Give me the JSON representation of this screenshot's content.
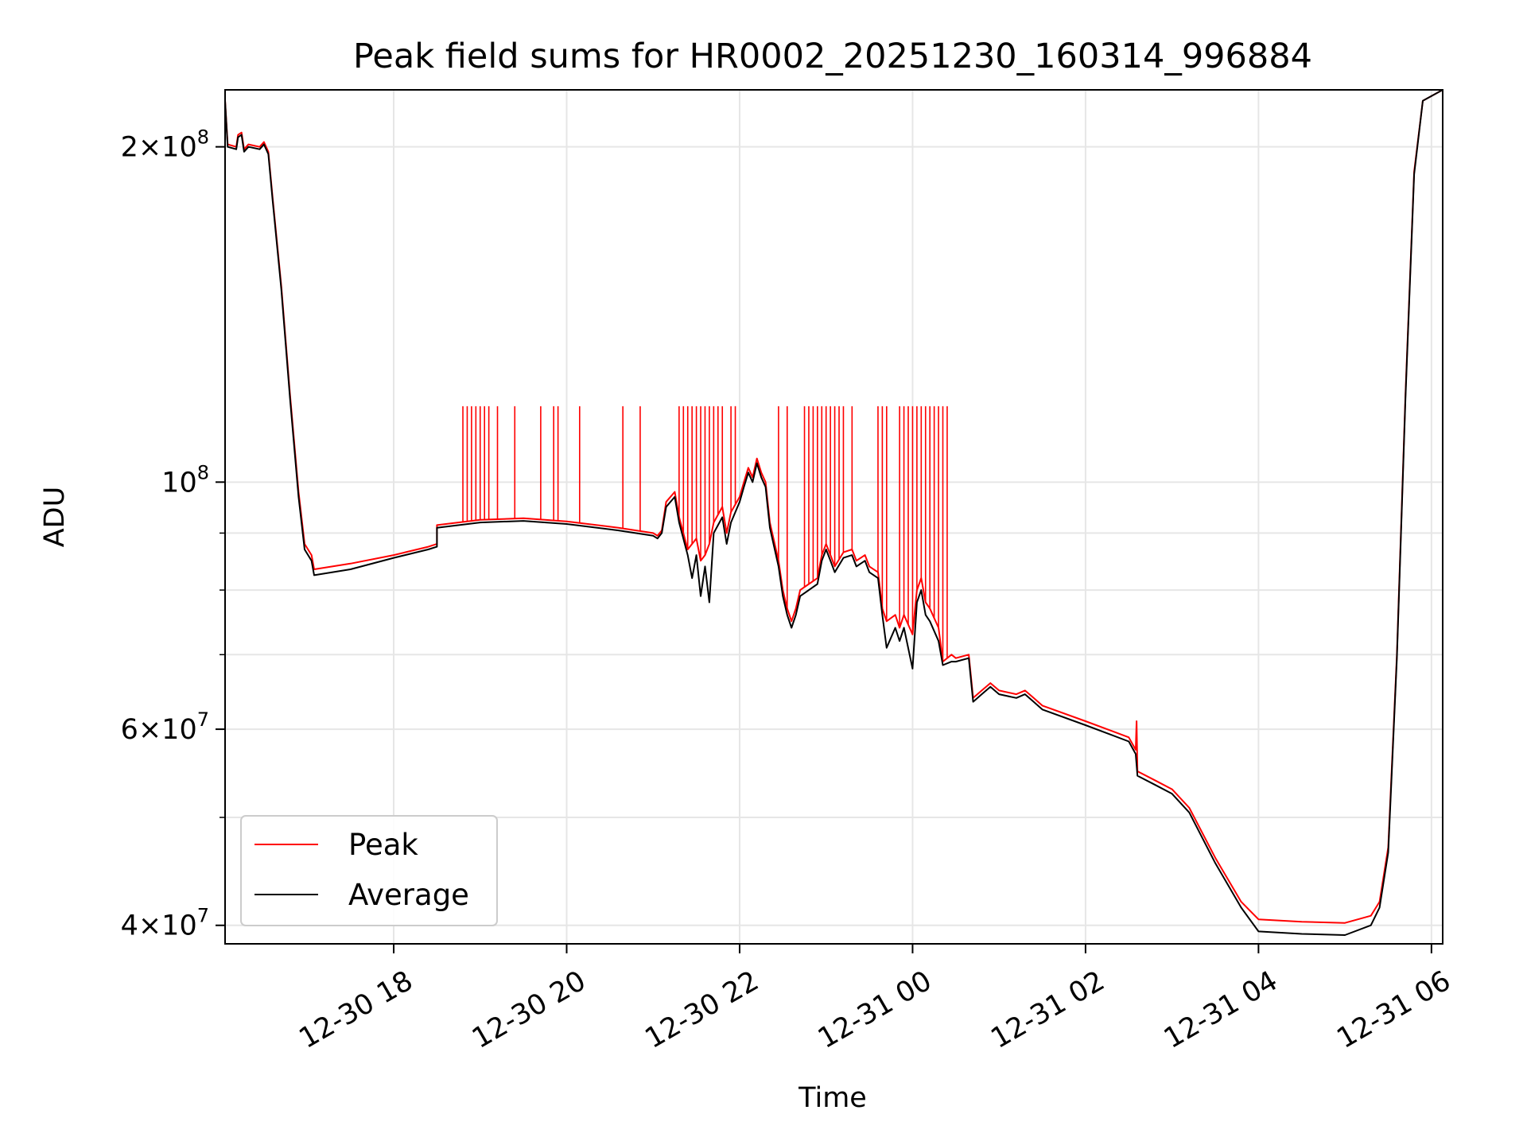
{
  "chart_data": {
    "type": "line",
    "title": "Peak field sums for HR0002_20251230_160314_996884",
    "xlabel": "Time",
    "ylabel": "ADU",
    "yscale": "log",
    "ylim": [
      38500000,
      225000000
    ],
    "xlim_hours_from_12_30_00": [
      16.05,
      30.13
    ],
    "grid": true,
    "legend_position": "lower-left",
    "x_ticks": [
      {
        "hour": 18,
        "label": "12-30 18"
      },
      {
        "hour": 20,
        "label": "12-30 20"
      },
      {
        "hour": 22,
        "label": "12-30 22"
      },
      {
        "hour": 24,
        "label": "12-31 00"
      },
      {
        "hour": 26,
        "label": "12-31 02"
      },
      {
        "hour": 28,
        "label": "12-31 04"
      },
      {
        "hour": 30,
        "label": "12-31 06"
      }
    ],
    "y_ticks": [
      {
        "value": 40000000,
        "mant": "4",
        "exp": "7"
      },
      {
        "value": 60000000,
        "mant": "6",
        "exp": "7"
      },
      {
        "value": 100000000,
        "mant": "",
        "exp": "8"
      },
      {
        "value": 200000000,
        "mant": "2",
        "exp": "8"
      }
    ],
    "y_minor": [
      50000000,
      70000000,
      80000000,
      90000000
    ],
    "series": [
      {
        "name": "Peak",
        "color": "#ff0000",
        "points": [
          [
            16.05,
            220000000
          ],
          [
            16.08,
            201000000
          ],
          [
            16.18,
            200000000
          ],
          [
            16.2,
            205000000
          ],
          [
            16.24,
            206000000
          ],
          [
            16.27,
            199000000
          ],
          [
            16.32,
            201000000
          ],
          [
            16.45,
            200000000
          ],
          [
            16.5,
            202000000
          ],
          [
            16.55,
            198000000
          ],
          [
            16.6,
            180000000
          ],
          [
            16.7,
            150000000
          ],
          [
            16.8,
            120000000
          ],
          [
            16.9,
            98000000
          ],
          [
            16.97,
            88000000
          ],
          [
            17.05,
            86000000
          ],
          [
            17.08,
            83500000
          ],
          [
            17.5,
            84500000
          ],
          [
            18.0,
            86000000
          ],
          [
            18.4,
            87500000
          ],
          [
            18.5,
            88000000
          ],
          [
            18.5,
            91500000
          ],
          [
            19.0,
            92500000
          ],
          [
            19.5,
            92800000
          ],
          [
            20.0,
            92200000
          ],
          [
            20.6,
            91000000
          ],
          [
            21.0,
            90000000
          ],
          [
            21.05,
            89500000
          ],
          [
            21.1,
            90500000
          ],
          [
            21.15,
            96000000
          ],
          [
            21.25,
            98000000
          ],
          [
            21.3,
            93000000
          ],
          [
            21.4,
            87000000
          ],
          [
            21.5,
            89000000
          ],
          [
            21.55,
            85000000
          ],
          [
            21.6,
            86000000
          ],
          [
            21.65,
            88000000
          ],
          [
            21.7,
            92000000
          ],
          [
            21.8,
            95000000
          ],
          [
            21.85,
            90000000
          ],
          [
            21.9,
            94000000
          ],
          [
            22.0,
            97000000
          ],
          [
            22.05,
            100000000
          ],
          [
            22.1,
            103000000
          ],
          [
            22.15,
            101000000
          ],
          [
            22.2,
            105000000
          ],
          [
            22.25,
            102000000
          ],
          [
            22.3,
            100000000
          ],
          [
            22.35,
            92000000
          ],
          [
            22.45,
            85000000
          ],
          [
            22.5,
            80000000
          ],
          [
            22.55,
            77000000
          ],
          [
            22.6,
            75000000
          ],
          [
            22.65,
            77000000
          ],
          [
            22.7,
            80000000
          ],
          [
            22.8,
            81000000
          ],
          [
            22.9,
            82000000
          ],
          [
            22.95,
            86000000
          ],
          [
            23.0,
            88000000
          ],
          [
            23.05,
            86000000
          ],
          [
            23.1,
            84000000
          ],
          [
            23.2,
            86500000
          ],
          [
            23.3,
            87000000
          ],
          [
            23.35,
            85000000
          ],
          [
            23.45,
            86000000
          ],
          [
            23.5,
            84000000
          ],
          [
            23.6,
            83000000
          ],
          [
            23.65,
            77000000
          ],
          [
            23.7,
            75000000
          ],
          [
            23.8,
            76000000
          ],
          [
            23.85,
            74000000
          ],
          [
            23.9,
            76000000
          ],
          [
            24.0,
            73000000
          ],
          [
            24.05,
            80000000
          ],
          [
            24.1,
            82000000
          ],
          [
            24.15,
            78000000
          ],
          [
            24.2,
            77000000
          ],
          [
            24.3,
            74000000
          ],
          [
            24.35,
            69000000
          ],
          [
            24.45,
            70000000
          ],
          [
            24.5,
            69500000
          ],
          [
            24.65,
            70000000
          ],
          [
            24.7,
            64000000
          ],
          [
            24.8,
            65000000
          ],
          [
            24.9,
            66000000
          ],
          [
            25.0,
            65000000
          ],
          [
            25.2,
            64500000
          ],
          [
            25.3,
            65000000
          ],
          [
            25.4,
            64000000
          ],
          [
            25.5,
            63000000
          ],
          [
            26.0,
            61000000
          ],
          [
            26.5,
            59000000
          ],
          [
            26.58,
            57500000
          ],
          [
            26.59,
            61000000
          ],
          [
            26.6,
            55000000
          ],
          [
            26.8,
            54000000
          ],
          [
            27.0,
            53000000
          ],
          [
            27.2,
            51000000
          ],
          [
            27.5,
            46000000
          ],
          [
            27.8,
            42000000
          ],
          [
            28.0,
            40500000
          ],
          [
            28.5,
            40300000
          ],
          [
            29.0,
            40200000
          ],
          [
            29.3,
            40800000
          ],
          [
            29.4,
            42000000
          ],
          [
            29.5,
            47000000
          ],
          [
            29.6,
            70000000
          ],
          [
            29.7,
            120000000
          ],
          [
            29.8,
            190000000
          ],
          [
            29.9,
            220000000
          ],
          [
            30.13,
            225000000
          ]
        ],
        "spikes_to": 117000000,
        "spike_times": [
          18.8,
          18.85,
          18.9,
          18.95,
          19.0,
          19.05,
          19.1,
          19.2,
          19.4,
          19.7,
          19.85,
          19.9,
          20.15,
          20.65,
          20.85,
          21.3,
          21.35,
          21.4,
          21.45,
          21.5,
          21.55,
          21.6,
          21.65,
          21.7,
          21.75,
          21.8,
          21.9,
          21.95,
          22.45,
          22.55,
          22.75,
          22.8,
          22.85,
          22.9,
          22.95,
          23.0,
          23.05,
          23.1,
          23.15,
          23.2,
          23.3,
          23.6,
          23.65,
          23.7,
          23.85,
          23.9,
          23.95,
          24.0,
          24.05,
          24.1,
          24.15,
          24.2,
          24.25,
          24.3,
          24.35,
          24.4
        ]
      },
      {
        "name": "Average",
        "color": "#000000",
        "points": [
          [
            16.05,
            220000000
          ],
          [
            16.08,
            200000000
          ],
          [
            16.18,
            199000000
          ],
          [
            16.2,
            204000000
          ],
          [
            16.24,
            205000000
          ],
          [
            16.27,
            198000000
          ],
          [
            16.32,
            200000000
          ],
          [
            16.45,
            199000000
          ],
          [
            16.5,
            201000000
          ],
          [
            16.55,
            197000000
          ],
          [
            16.6,
            179000000
          ],
          [
            16.7,
            149000000
          ],
          [
            16.8,
            119000000
          ],
          [
            16.9,
            97000000
          ],
          [
            16.97,
            87000000
          ],
          [
            17.05,
            85000000
          ],
          [
            17.08,
            82500000
          ],
          [
            17.5,
            83500000
          ],
          [
            18.0,
            85500000
          ],
          [
            18.4,
            87000000
          ],
          [
            18.5,
            87500000
          ],
          [
            18.5,
            91000000
          ],
          [
            19.0,
            92000000
          ],
          [
            19.5,
            92300000
          ],
          [
            20.0,
            91700000
          ],
          [
            20.6,
            90500000
          ],
          [
            21.0,
            89500000
          ],
          [
            21.05,
            89000000
          ],
          [
            21.1,
            90000000
          ],
          [
            21.15,
            95000000
          ],
          [
            21.25,
            97000000
          ],
          [
            21.3,
            92000000
          ],
          [
            21.4,
            86000000
          ],
          [
            21.45,
            82000000
          ],
          [
            21.5,
            86000000
          ],
          [
            21.55,
            79000000
          ],
          [
            21.6,
            84000000
          ],
          [
            21.65,
            78000000
          ],
          [
            21.7,
            90000000
          ],
          [
            21.8,
            93000000
          ],
          [
            21.85,
            88000000
          ],
          [
            21.9,
            92000000
          ],
          [
            22.0,
            96000000
          ],
          [
            22.05,
            99000000
          ],
          [
            22.1,
            102000000
          ],
          [
            22.15,
            100000000
          ],
          [
            22.2,
            104000000
          ],
          [
            22.25,
            101000000
          ],
          [
            22.3,
            99000000
          ],
          [
            22.35,
            91000000
          ],
          [
            22.45,
            84000000
          ],
          [
            22.5,
            79000000
          ],
          [
            22.55,
            76000000
          ],
          [
            22.6,
            74000000
          ],
          [
            22.65,
            76000000
          ],
          [
            22.7,
            79000000
          ],
          [
            22.8,
            80000000
          ],
          [
            22.9,
            81000000
          ],
          [
            22.95,
            85000000
          ],
          [
            23.0,
            87000000
          ],
          [
            23.05,
            85000000
          ],
          [
            23.1,
            83000000
          ],
          [
            23.2,
            85500000
          ],
          [
            23.3,
            86000000
          ],
          [
            23.35,
            84000000
          ],
          [
            23.45,
            85000000
          ],
          [
            23.5,
            83000000
          ],
          [
            23.6,
            82000000
          ],
          [
            23.65,
            76000000
          ],
          [
            23.7,
            71000000
          ],
          [
            23.8,
            74000000
          ],
          [
            23.85,
            72000000
          ],
          [
            23.9,
            74000000
          ],
          [
            24.0,
            68000000
          ],
          [
            24.05,
            78000000
          ],
          [
            24.1,
            80000000
          ],
          [
            24.15,
            76000000
          ],
          [
            24.2,
            75000000
          ],
          [
            24.3,
            72000000
          ],
          [
            24.35,
            68500000
          ],
          [
            24.45,
            69000000
          ],
          [
            24.5,
            69000000
          ],
          [
            24.65,
            69500000
          ],
          [
            24.7,
            63500000
          ],
          [
            24.8,
            64500000
          ],
          [
            24.9,
            65500000
          ],
          [
            25.0,
            64500000
          ],
          [
            25.2,
            64000000
          ],
          [
            25.3,
            64500000
          ],
          [
            25.4,
            63500000
          ],
          [
            25.5,
            62500000
          ],
          [
            26.0,
            60500000
          ],
          [
            26.5,
            58500000
          ],
          [
            26.58,
            57000000
          ],
          [
            26.6,
            54500000
          ],
          [
            26.8,
            53500000
          ],
          [
            27.0,
            52500000
          ],
          [
            27.2,
            50500000
          ],
          [
            27.5,
            45500000
          ],
          [
            27.8,
            41500000
          ],
          [
            28.0,
            39500000
          ],
          [
            28.5,
            39300000
          ],
          [
            29.0,
            39200000
          ],
          [
            29.3,
            40000000
          ],
          [
            29.4,
            41500000
          ],
          [
            29.5,
            46500000
          ],
          [
            29.6,
            69500000
          ],
          [
            29.7,
            119000000
          ],
          [
            29.8,
            189000000
          ],
          [
            29.9,
            220000000
          ],
          [
            30.13,
            225000000
          ]
        ]
      }
    ],
    "legend": [
      {
        "name": "Peak",
        "color": "#ff0000"
      },
      {
        "name": "Average",
        "color": "#000000"
      }
    ]
  }
}
